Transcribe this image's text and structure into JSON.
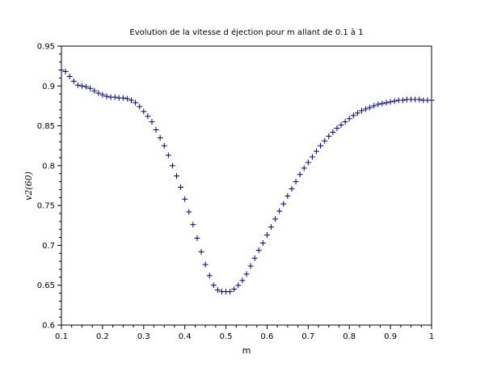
{
  "chart_data": {
    "type": "scatter",
    "title": "Evolution de la vitesse d éjection pour m allant de 0.1 à 1",
    "xlabel": "m",
    "ylabel": "v2(60)",
    "xlim": [
      0.1,
      1.0
    ],
    "ylim": [
      0.6,
      0.95
    ],
    "x_ticks": [
      0.1,
      0.2,
      0.3,
      0.4,
      0.5,
      0.6,
      0.7,
      0.8,
      0.9,
      1.0
    ],
    "x_tick_labels": [
      "0.1",
      "0.2",
      "0.3",
      "0.4",
      "0.5",
      "0.6",
      "0.7",
      "0.8",
      "0.9",
      "1"
    ],
    "y_ticks": [
      0.6,
      0.65,
      0.7,
      0.75,
      0.8,
      0.85,
      0.9,
      0.95
    ],
    "y_tick_labels": [
      "0.6",
      "0.65",
      "0.7",
      "0.75",
      "0.8",
      "0.85",
      "0.9",
      "0.95"
    ],
    "grid": false,
    "marker": "plus",
    "color": "#000080",
    "series": [
      {
        "x": [
          0.1,
          0.11,
          0.12,
          0.13,
          0.14,
          0.15,
          0.16,
          0.17,
          0.18,
          0.19,
          0.2,
          0.21,
          0.22,
          0.23,
          0.24,
          0.25,
          0.26,
          0.27,
          0.28,
          0.29,
          0.3,
          0.31,
          0.32,
          0.33,
          0.34,
          0.35,
          0.36,
          0.37,
          0.38,
          0.39,
          0.4,
          0.41,
          0.42,
          0.43,
          0.44,
          0.45,
          0.46,
          0.47,
          0.48,
          0.49,
          0.5,
          0.51,
          0.52,
          0.53,
          0.54,
          0.55,
          0.56,
          0.57,
          0.58,
          0.59,
          0.6,
          0.61,
          0.62,
          0.63,
          0.64,
          0.65,
          0.66,
          0.67,
          0.68,
          0.69,
          0.7,
          0.71,
          0.72,
          0.73,
          0.74,
          0.75,
          0.76,
          0.77,
          0.78,
          0.79,
          0.8,
          0.81,
          0.82,
          0.83,
          0.84,
          0.85,
          0.86,
          0.87,
          0.88,
          0.89,
          0.9,
          0.91,
          0.92,
          0.93,
          0.94,
          0.95,
          0.96,
          0.97,
          0.98,
          0.99,
          1.0
        ],
        "y": [
          0.92,
          0.918,
          0.912,
          0.906,
          0.901,
          0.9,
          0.899,
          0.897,
          0.894,
          0.891,
          0.889,
          0.887,
          0.886,
          0.886,
          0.885,
          0.885,
          0.884,
          0.882,
          0.879,
          0.874,
          0.868,
          0.862,
          0.855,
          0.845,
          0.835,
          0.825,
          0.813,
          0.8,
          0.787,
          0.773,
          0.758,
          0.742,
          0.726,
          0.709,
          0.692,
          0.676,
          0.662,
          0.65,
          0.644,
          0.642,
          0.642,
          0.642,
          0.645,
          0.65,
          0.656,
          0.664,
          0.674,
          0.684,
          0.694,
          0.703,
          0.713,
          0.723,
          0.733,
          0.743,
          0.752,
          0.762,
          0.771,
          0.78,
          0.789,
          0.797,
          0.804,
          0.811,
          0.818,
          0.825,
          0.831,
          0.837,
          0.842,
          0.847,
          0.851,
          0.855,
          0.859,
          0.863,
          0.866,
          0.869,
          0.871,
          0.873,
          0.875,
          0.877,
          0.878,
          0.879,
          0.88,
          0.881,
          0.882,
          0.882,
          0.883,
          0.883,
          0.883,
          0.883,
          0.882,
          0.882,
          0.882
        ]
      }
    ]
  }
}
